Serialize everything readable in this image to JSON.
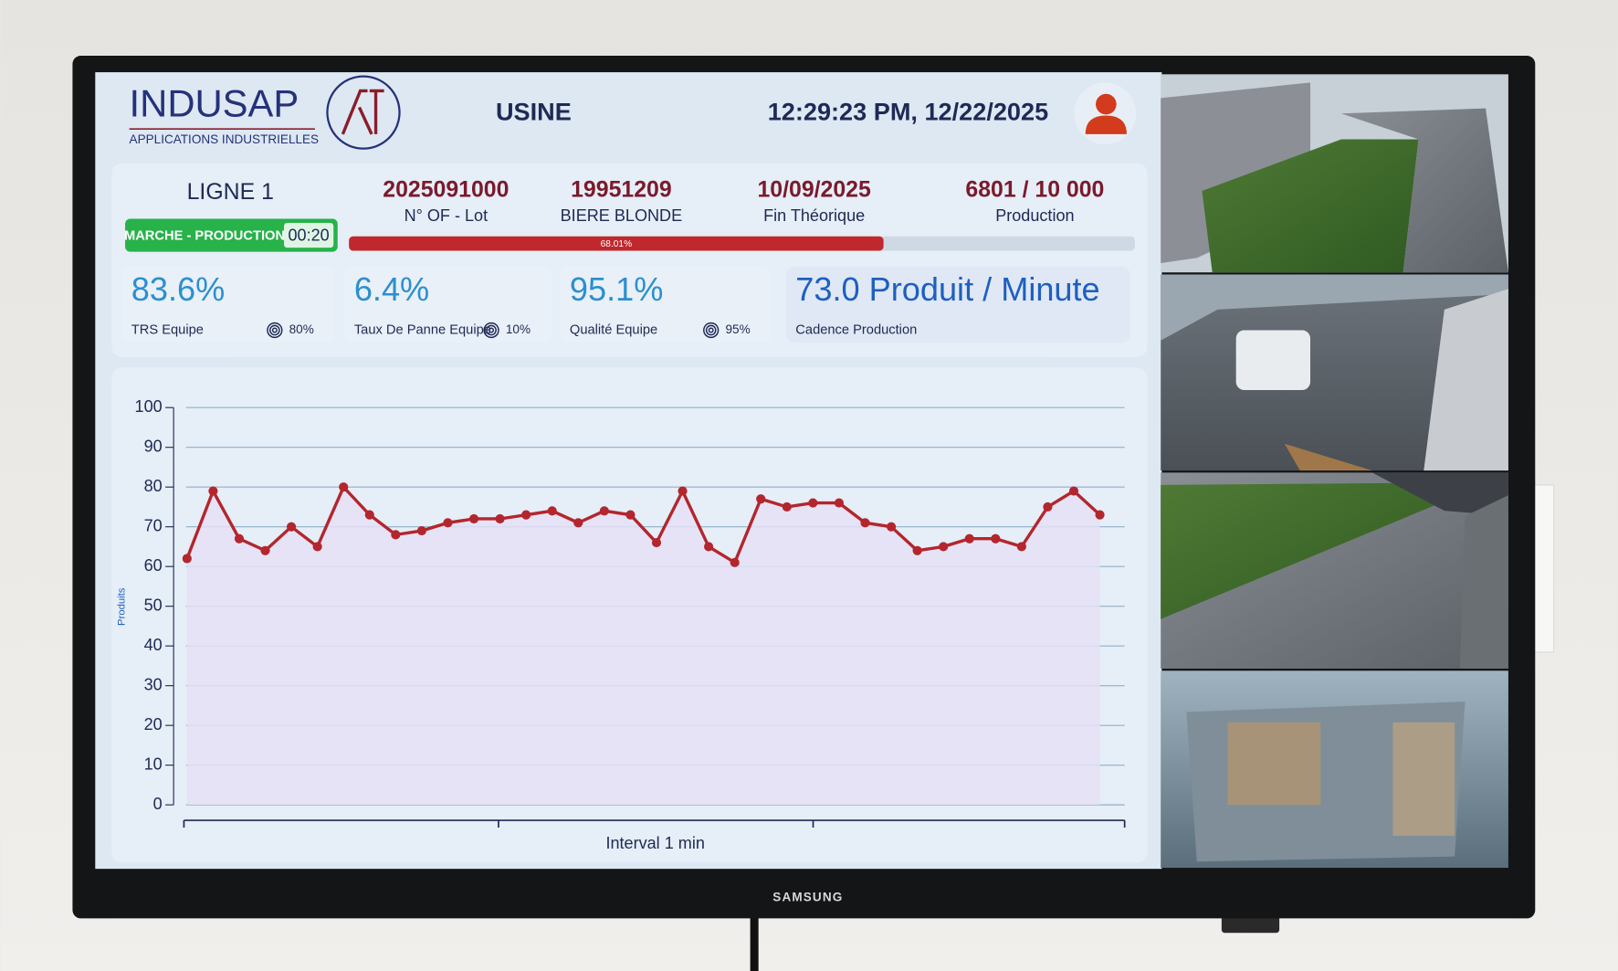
{
  "header": {
    "logo": "INDUSAP",
    "logo_subtitle": "APPLICATIONS INDUSTRIELLES",
    "site": "USINE",
    "datetime": "12:29:23 PM, 12/22/2025"
  },
  "line": {
    "name": "LIGNE 1",
    "status": "MARCHE - PRODUCTION",
    "timer": "00:20"
  },
  "order": {
    "fields": [
      {
        "value": "2025091000",
        "label": "N° OF - Lot"
      },
      {
        "value": "19951209",
        "label": "BIERE BLONDE"
      },
      {
        "value": "10/09/2025",
        "label": "Fin Théorique"
      },
      {
        "value": "6801 / 10 000",
        "label": "Production"
      }
    ],
    "progress": {
      "value": 68.01,
      "label": "68.01%"
    }
  },
  "kpis": [
    {
      "value": "83.6%",
      "label": "TRS Equipe",
      "target": "80%"
    },
    {
      "value": "6.4%",
      "label": "Taux De Panne Equipe",
      "target": "10%"
    },
    {
      "value": "95.1%",
      "label": "Qualité Equipe",
      "target": "95%"
    },
    {
      "value": "73.0 Produit / Minute",
      "label": "Cadence Production"
    }
  ],
  "chart_data": {
    "type": "line",
    "y_label": "Produits",
    "x_label": "Interval 1 min",
    "values": [
      62,
      79,
      67,
      64,
      70,
      65,
      80,
      73,
      68,
      69,
      71,
      72,
      72,
      73,
      74,
      71,
      74,
      73,
      66,
      79,
      65,
      61,
      77,
      75,
      76,
      76,
      71,
      70,
      64,
      65,
      67,
      67,
      65,
      75,
      79,
      73
    ],
    "color": "#b3262d",
    "ylim": [
      0,
      100
    ],
    "yticks": [
      0,
      10,
      20,
      30,
      40,
      50,
      60,
      70,
      80,
      90,
      100
    ],
    "grid": true
  },
  "tv": {
    "brand": "SAMSUNG"
  }
}
